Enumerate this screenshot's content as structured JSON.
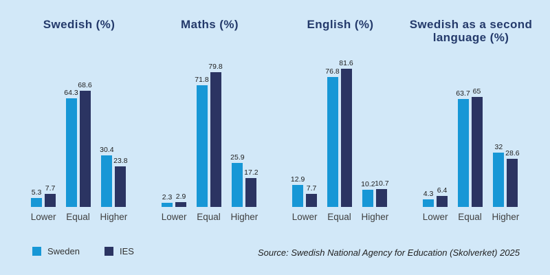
{
  "page": {
    "background": "#d2e8f8"
  },
  "colors": {
    "title_text": "#243a6b",
    "value_label": "#1c1c1c",
    "category_label": "#3f3f3f",
    "legend_text": "#333333",
    "source_text": "#1f1f1f"
  },
  "legend": {
    "position": "bottom-left",
    "items": [
      {
        "label": "Sweden",
        "color": "#1797d6"
      },
      {
        "label": "IES",
        "color": "#2b3462"
      }
    ]
  },
  "source_note": "Source: Swedish National Agency for Education (Skolverket) 2025",
  "chart_data": [
    {
      "type": "bar",
      "title": "Swedish (%)",
      "categories": [
        "Lower",
        "Equal",
        "Higher"
      ],
      "series": [
        {
          "name": "Sweden",
          "values": [
            5.3,
            64.3,
            30.4
          ]
        },
        {
          "name": "IES",
          "values": [
            7.7,
            68.6,
            23.8
          ]
        }
      ],
      "ylim": [
        0,
        85
      ],
      "grid": false,
      "value_labels": true
    },
    {
      "type": "bar",
      "title": "Maths (%)",
      "categories": [
        "Lower",
        "Equal",
        "Higher"
      ],
      "series": [
        {
          "name": "Sweden",
          "values": [
            2.3,
            71.8,
            25.9
          ]
        },
        {
          "name": "IES",
          "values": [
            2.9,
            79.8,
            17.2
          ]
        }
      ],
      "ylim": [
        0,
        85
      ],
      "grid": false,
      "value_labels": true
    },
    {
      "type": "bar",
      "title": "English (%)",
      "categories": [
        "Lower",
        "Equal",
        "Higher"
      ],
      "series": [
        {
          "name": "Sweden",
          "values": [
            12.9,
            76.8,
            10.2
          ]
        },
        {
          "name": "IES",
          "values": [
            7.7,
            81.6,
            10.7
          ]
        }
      ],
      "ylim": [
        0,
        85
      ],
      "grid": false,
      "value_labels": true
    },
    {
      "type": "bar",
      "title": "Swedish as a second language (%)",
      "categories": [
        "Lower",
        "Equal",
        "Higher"
      ],
      "series": [
        {
          "name": "Sweden",
          "values": [
            4.3,
            63.7,
            32
          ]
        },
        {
          "name": "IES",
          "values": [
            6.4,
            65,
            28.6
          ]
        }
      ],
      "ylim": [
        0,
        85
      ],
      "grid": false,
      "value_labels": true
    }
  ]
}
